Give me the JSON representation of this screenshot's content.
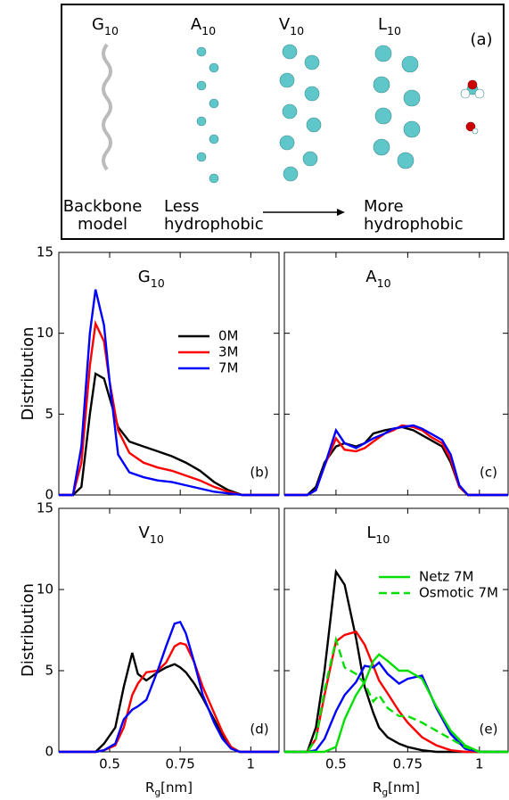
{
  "diagram": {
    "labels": [
      "G10",
      "A10",
      "V10",
      "L10"
    ],
    "panel_label": "(a)",
    "captions": [
      [
        "Backbone",
        "model"
      ],
      [
        "Less",
        "hydrophobic"
      ],
      [
        "More",
        "hydrophobic"
      ]
    ]
  },
  "chart_data": [
    {
      "type": "line",
      "title": "G10",
      "panel_label": "(b)",
      "y_label": "Distribution",
      "xlim": [
        0.32,
        1.1
      ],
      "ylim": [
        0,
        15
      ],
      "xticks": [
        0.5,
        0.75,
        1
      ],
      "yticks": [
        0,
        5,
        10,
        15
      ],
      "tick_labels": {
        "x": false,
        "y": true
      },
      "legend": "upper right",
      "x": [
        0.32,
        0.37,
        0.4,
        0.43,
        0.45,
        0.48,
        0.5,
        0.53,
        0.57,
        0.62,
        0.67,
        0.72,
        0.77,
        0.82,
        0.87,
        0.92,
        0.97,
        1.1
      ],
      "series": [
        {
          "name": "0M",
          "color": "#000000",
          "values": [
            0,
            0,
            0.5,
            5,
            7.5,
            7.2,
            6,
            4.2,
            3.3,
            3.0,
            2.7,
            2.4,
            2.0,
            1.5,
            0.8,
            0.3,
            0,
            0
          ]
        },
        {
          "name": "3M",
          "color": "#ff0000",
          "values": [
            0,
            0,
            2,
            8,
            10.6,
            9.5,
            7,
            4,
            2.6,
            2.0,
            1.7,
            1.5,
            1.2,
            0.9,
            0.5,
            0.2,
            0,
            0
          ]
        },
        {
          "name": "7M",
          "color": "#0000ff",
          "values": [
            0,
            0,
            3,
            10,
            12.7,
            10.5,
            7,
            2.5,
            1.4,
            1.1,
            0.9,
            0.8,
            0.6,
            0.4,
            0.2,
            0.1,
            0,
            0
          ]
        }
      ]
    },
    {
      "type": "line",
      "title": "A10",
      "panel_label": "(c)",
      "xlim": [
        0.32,
        1.1
      ],
      "ylim": [
        0,
        15
      ],
      "xticks": [
        0.5,
        0.75,
        1
      ],
      "yticks": [
        0,
        5,
        10,
        15
      ],
      "tick_labels": {
        "x": false,
        "y": false
      },
      "x": [
        0.32,
        0.4,
        0.43,
        0.46,
        0.5,
        0.53,
        0.57,
        0.6,
        0.63,
        0.67,
        0.7,
        0.73,
        0.77,
        0.8,
        0.83,
        0.87,
        0.9,
        0.93,
        0.96,
        1.1
      ],
      "series": [
        {
          "color": "#000000",
          "values": [
            0,
            0,
            0.5,
            2,
            3.0,
            3.2,
            3.0,
            3.2,
            3.8,
            4.0,
            4.1,
            4.2,
            4.0,
            3.7,
            3.4,
            3.0,
            2.0,
            0.5,
            0,
            0
          ]
        },
        {
          "color": "#ff0000",
          "values": [
            0,
            0,
            0.3,
            1.8,
            3.5,
            2.8,
            2.7,
            2.9,
            3.3,
            3.8,
            4.0,
            4.3,
            4.2,
            4.0,
            3.6,
            3.2,
            2.2,
            0.5,
            0,
            0
          ]
        },
        {
          "color": "#0000ff",
          "values": [
            0,
            0,
            0.3,
            1.8,
            4.0,
            3.2,
            2.9,
            3.2,
            3.5,
            3.8,
            4.1,
            4.2,
            4.3,
            4.1,
            3.8,
            3.4,
            2.5,
            0.6,
            0,
            0
          ]
        }
      ]
    },
    {
      "type": "line",
      "title": "V10",
      "panel_label": "(d)",
      "y_label": "Distribution",
      "x_label": "Rg[nm]",
      "xlim": [
        0.32,
        1.1
      ],
      "ylim": [
        0,
        15
      ],
      "xticks": [
        0.5,
        0.75,
        1
      ],
      "yticks": [
        0,
        5,
        10,
        15
      ],
      "tick_labels": {
        "x": true,
        "y": true
      },
      "x": [
        0.32,
        0.45,
        0.48,
        0.52,
        0.55,
        0.58,
        0.6,
        0.63,
        0.67,
        0.7,
        0.73,
        0.75,
        0.77,
        0.8,
        0.83,
        0.87,
        0.9,
        0.93,
        0.96,
        1.1
      ],
      "series": [
        {
          "color": "#000000",
          "values": [
            0,
            0,
            0.5,
            1.5,
            4,
            6.1,
            4.8,
            4.4,
            4.9,
            5.2,
            5.4,
            5.2,
            4.9,
            4.2,
            3.3,
            2.0,
            1.0,
            0.3,
            0,
            0
          ]
        },
        {
          "color": "#ff0000",
          "values": [
            0,
            0,
            0.1,
            0.4,
            1.5,
            3.5,
            4.2,
            4.9,
            5.0,
            5.5,
            6.5,
            6.7,
            6.6,
            5.5,
            4.0,
            2.4,
            1.2,
            0.3,
            0,
            0
          ]
        },
        {
          "color": "#0000ff",
          "values": [
            0,
            0,
            0.1,
            0.5,
            2,
            2.6,
            2.8,
            3.2,
            5.0,
            6.5,
            7.9,
            8.0,
            7.3,
            5.5,
            3.5,
            1.8,
            0.8,
            0.2,
            0,
            0
          ]
        }
      ]
    },
    {
      "type": "line",
      "title": "L10",
      "panel_label": "(e)",
      "x_label": "Rg[nm]",
      "xlim": [
        0.32,
        1.1
      ],
      "ylim": [
        0,
        15
      ],
      "xticks": [
        0.5,
        0.75,
        1
      ],
      "yticks": [
        0,
        5,
        10,
        15
      ],
      "tick_labels": {
        "x": true,
        "y": false
      },
      "legend": "upper right",
      "x": [
        0.32,
        0.4,
        0.43,
        0.46,
        0.5,
        0.53,
        0.57,
        0.6,
        0.63,
        0.65,
        0.68,
        0.72,
        0.75,
        0.8,
        0.85,
        0.9,
        0.95,
        1.0,
        1.1
      ],
      "series": [
        {
          "color": "#000000",
          "values": [
            0,
            0,
            1.5,
            5,
            11.1,
            10.3,
            7,
            4,
            2.4,
            1.5,
            0.9,
            0.5,
            0.3,
            0.1,
            0,
            0,
            0,
            0,
            0
          ]
        },
        {
          "color": "#ff0000",
          "values": [
            0,
            0,
            0.8,
            3.5,
            6.8,
            7.2,
            7.4,
            6.6,
            5.3,
            4.4,
            3.6,
            2.5,
            1.8,
            0.9,
            0.4,
            0.1,
            0,
            0,
            0
          ]
        },
        {
          "color": "#0000ff",
          "values": [
            0,
            0,
            0.1,
            0.8,
            2.5,
            3.5,
            4.3,
            5.3,
            5.2,
            5.5,
            4.8,
            4.2,
            4.5,
            4.7,
            2.7,
            1.1,
            0.2,
            0,
            0
          ]
        },
        {
          "name": "Netz 7M",
          "color": "#00e000",
          "values": [
            0,
            0,
            0,
            0,
            0.3,
            2,
            3.5,
            4.3,
            5.6,
            6.0,
            5.6,
            5.0,
            5.0,
            4.5,
            2.8,
            1.3,
            0.4,
            0,
            0
          ]
        },
        {
          "name": "Osmotic 7M",
          "color": "#00e000",
          "dashed": true,
          "values": [
            0,
            0,
            0.8,
            3.8,
            6.9,
            5.2,
            4.8,
            4.2,
            3.1,
            3.5,
            2.7,
            2.2,
            2.2,
            1.8,
            1.3,
            0.8,
            0.3,
            0,
            0
          ]
        }
      ]
    }
  ]
}
